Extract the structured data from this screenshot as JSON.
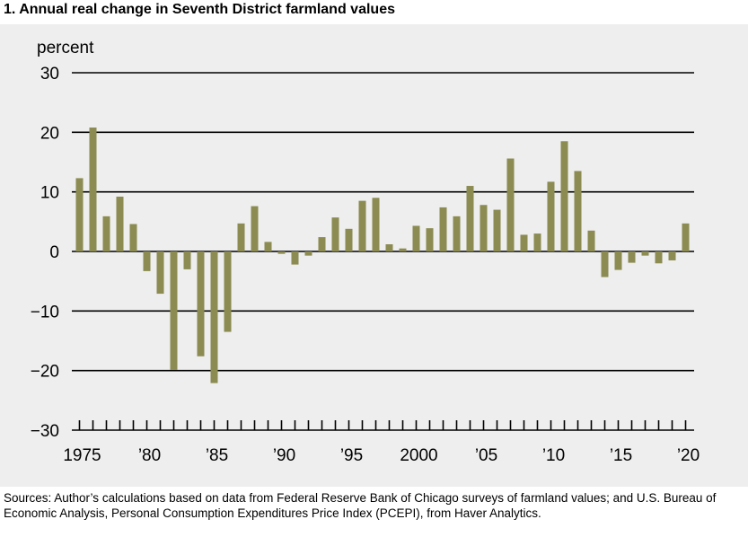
{
  "title": "1. Annual real change in Seventh District farmland values",
  "source_note": "Sources: Author’s calculations based on data from Federal Reserve Bank of Chicago surveys of farmland values; and U.S. Bureau of Economic Analysis, Personal Consumption Expenditures Price Index (PCEPI), from Haver Analytics.",
  "colors": {
    "bar": "#8b8b52",
    "background": "#eeeeee",
    "grid": "#000000"
  },
  "chart_data": {
    "type": "bar",
    "ylabel": "percent",
    "ylim": [
      -30,
      30
    ],
    "yticks": [
      30,
      20,
      10,
      0,
      -10,
      -20,
      -30
    ],
    "ytick_labels": [
      "30",
      "20",
      "10",
      "0",
      "−10",
      "−20",
      "−30"
    ],
    "grid": "horizontal",
    "xtick_labels": [
      {
        "year": 1975,
        "label": "1975"
      },
      {
        "year": 1980,
        "label": "’80"
      },
      {
        "year": 1985,
        "label": "’85"
      },
      {
        "year": 1990,
        "label": "’90"
      },
      {
        "year": 1995,
        "label": "’95"
      },
      {
        "year": 2000,
        "label": "2000"
      },
      {
        "year": 2005,
        "label": "’05"
      },
      {
        "year": 2010,
        "label": "’10"
      },
      {
        "year": 2015,
        "label": "’15"
      },
      {
        "year": 2020,
        "label": "’20"
      }
    ],
    "categories": [
      1975,
      1976,
      1977,
      1978,
      1979,
      1980,
      1981,
      1982,
      1983,
      1984,
      1985,
      1986,
      1987,
      1988,
      1989,
      1990,
      1991,
      1992,
      1993,
      1994,
      1995,
      1996,
      1997,
      1998,
      1999,
      2000,
      2001,
      2002,
      2003,
      2004,
      2005,
      2006,
      2007,
      2008,
      2009,
      2010,
      2011,
      2012,
      2013,
      2014,
      2015,
      2016,
      2017,
      2018,
      2019,
      2020
    ],
    "values": [
      12.3,
      20.8,
      5.9,
      9.2,
      4.6,
      -3.3,
      -7.1,
      -19.9,
      -3.0,
      -17.6,
      -22.1,
      -13.5,
      4.7,
      7.6,
      1.6,
      -0.4,
      -2.2,
      -0.7,
      2.4,
      5.7,
      3.8,
      8.5,
      9.0,
      1.2,
      0.5,
      4.3,
      3.9,
      7.4,
      5.9,
      11.0,
      7.8,
      7.0,
      15.6,
      2.8,
      3.0,
      11.7,
      18.5,
      13.5,
      3.5,
      -4.3,
      -3.1,
      -1.9,
      -0.7,
      -2.0,
      -1.5,
      4.7
    ]
  }
}
